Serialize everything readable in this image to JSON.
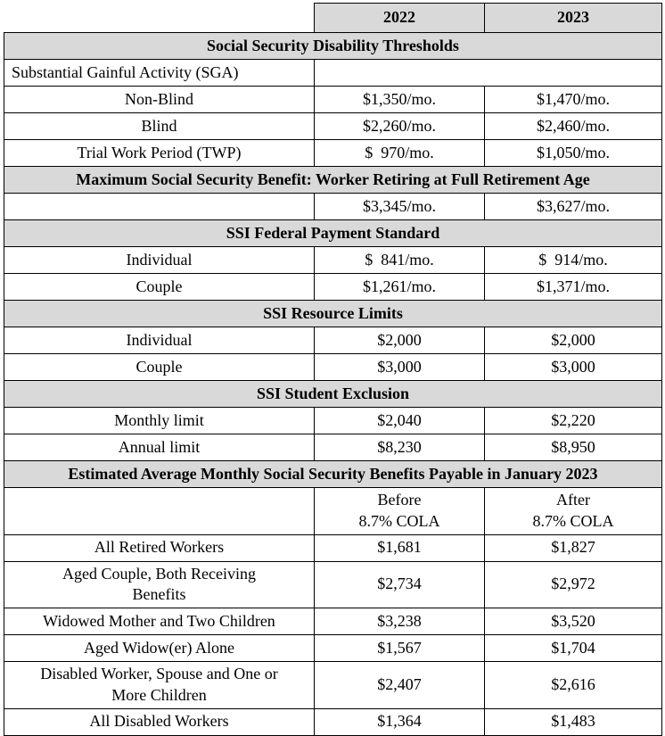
{
  "colors": {
    "section_header_bg": "#d9d9d9",
    "year_header_bg": "#d9d9d9",
    "border": "#000000",
    "text": "#000000",
    "background": "#ffffff"
  },
  "table": {
    "year_headers": [
      "2022",
      "2023"
    ],
    "sections": [
      {
        "title": "Social Security Disability Thresholds",
        "rows": [
          {
            "label": "Substantial Gainful Activity (SGA)",
            "label_align": "left",
            "merged_empty": true,
            "values": [
              "",
              ""
            ]
          },
          {
            "label": "Non-Blind",
            "values": [
              "$1,350/mo.",
              "$1,470/mo."
            ]
          },
          {
            "label": "Blind",
            "values": [
              "$2,260/mo.",
              "$2,460/mo."
            ]
          },
          {
            "label": "Trial Work Period (TWP)",
            "values": [
              "$  970/mo.",
              "$1,050/mo."
            ]
          }
        ]
      },
      {
        "title": "Maximum Social Security Benefit: Worker Retiring at Full Retirement Age",
        "rows": [
          {
            "label": "",
            "values": [
              "$3,345/mo.",
              "$3,627/mo."
            ]
          }
        ]
      },
      {
        "title": "SSI Federal Payment Standard",
        "rows": [
          {
            "label": "Individual",
            "values": [
              "$  841/mo.",
              "$  914/mo."
            ]
          },
          {
            "label": "Couple",
            "values": [
              "$1,261/mo.",
              "$1,371/mo."
            ]
          }
        ]
      },
      {
        "title": "SSI Resource Limits",
        "rows": [
          {
            "label": "Individual",
            "values": [
              "$2,000",
              "$2,000"
            ]
          },
          {
            "label": "Couple",
            "values": [
              "$3,000",
              "$3,000"
            ]
          }
        ]
      },
      {
        "title": "SSI Student Exclusion",
        "rows": [
          {
            "label": "Monthly limit",
            "values": [
              "$2,040",
              "$2,220"
            ]
          },
          {
            "label": "Annual limit",
            "values": [
              "$8,230",
              "$8,950"
            ]
          }
        ]
      },
      {
        "title": "Estimated Average Monthly Social Security Benefits Payable in January 2023",
        "rows": [
          {
            "label": "",
            "values": [
              "Before\n8.7% COLA",
              "After\n8.7% COLA"
            ]
          },
          {
            "label": "All Retired Workers",
            "values": [
              "$1,681",
              "$1,827"
            ]
          },
          {
            "label": "Aged Couple, Both Receiving\nBenefits",
            "values": [
              "$2,734",
              "$2,972"
            ]
          },
          {
            "label": "Widowed Mother and Two Children",
            "values": [
              "$3,238",
              "$3,520"
            ]
          },
          {
            "label": "Aged Widow(er) Alone",
            "values": [
              "$1,567",
              "$1,704"
            ]
          },
          {
            "label": "Disabled Worker, Spouse and One or\nMore Children",
            "values": [
              "$2,407",
              "$2,616"
            ]
          },
          {
            "label": "All Disabled Workers",
            "values": [
              "$1,364",
              "$1,483"
            ]
          }
        ]
      }
    ]
  }
}
